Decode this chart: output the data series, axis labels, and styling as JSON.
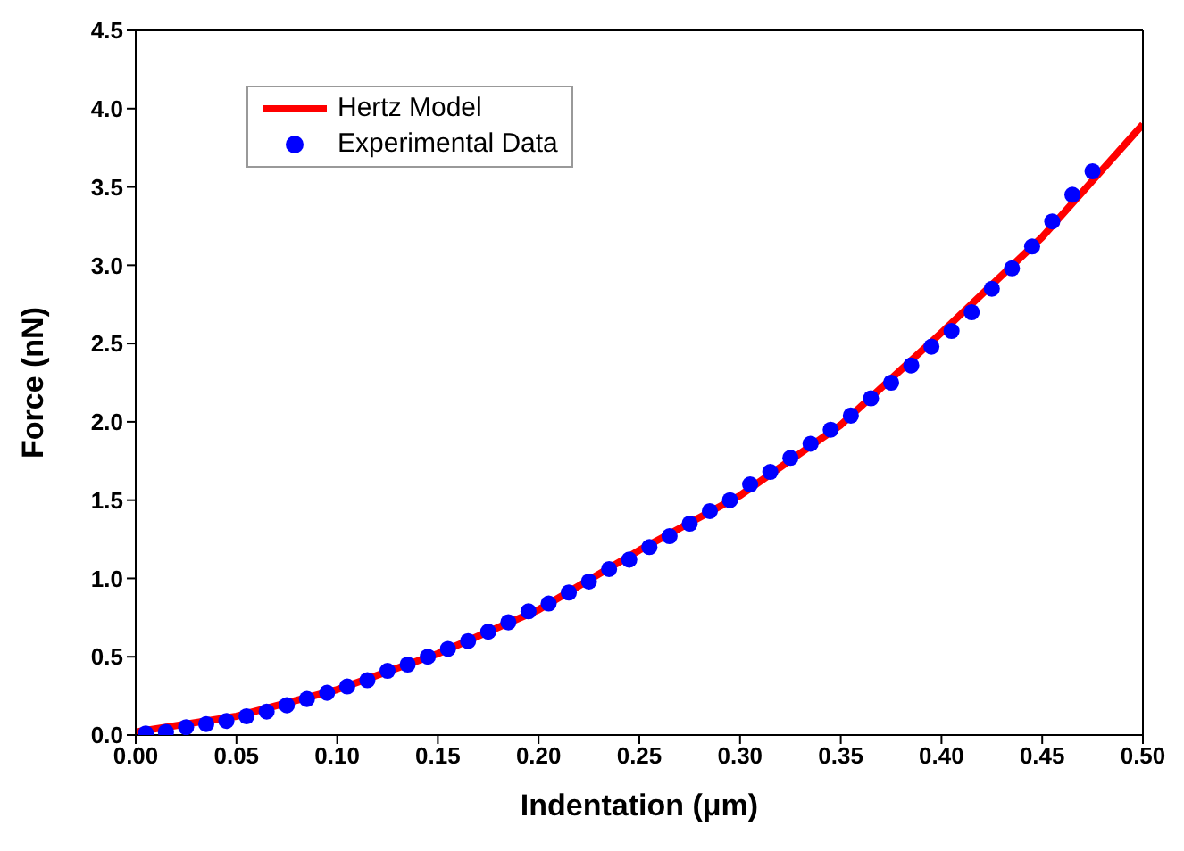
{
  "chart_data": {
    "type": "line",
    "xlabel": "Indentation (μm)",
    "ylabel": "Force (nN)",
    "xlim": [
      0,
      0.5
    ],
    "ylim": [
      0,
      4.5
    ],
    "xticks": [
      {
        "value": 0,
        "label": "0.00"
      },
      {
        "value": 0.05,
        "label": "0.05"
      },
      {
        "value": 0.1,
        "label": "0.10"
      },
      {
        "value": 0.15,
        "label": "0.15"
      },
      {
        "value": 0.2,
        "label": "0.20"
      },
      {
        "value": 0.25,
        "label": "0.25"
      },
      {
        "value": 0.3,
        "label": "0.30"
      },
      {
        "value": 0.35,
        "label": "0.35"
      },
      {
        "value": 0.4,
        "label": "0.40"
      },
      {
        "value": 0.45,
        "label": "0.45"
      },
      {
        "value": 0.5,
        "label": "0.50"
      }
    ],
    "yticks": [
      {
        "value": 0,
        "label": "0.0"
      },
      {
        "value": 0.5,
        "label": "0.5"
      },
      {
        "value": 1,
        "label": "1.0"
      },
      {
        "value": 1.5,
        "label": "1.5"
      },
      {
        "value": 2,
        "label": "2.0"
      },
      {
        "value": 2.5,
        "label": "2.5"
      },
      {
        "value": 3,
        "label": "3.0"
      },
      {
        "value": 3.5,
        "label": "3.5"
      },
      {
        "value": 4,
        "label": "4.0"
      },
      {
        "value": 4.5,
        "label": "4.5"
      }
    ],
    "grid": false,
    "legend": "top left",
    "series": [
      {
        "name": "Hertz Model",
        "color": "#ff0000",
        "line_style": "solid",
        "marker": "none",
        "x": [
          0,
          0.05,
          0.1,
          0.15,
          0.2,
          0.25,
          0.3,
          0.35,
          0.4,
          0.45,
          0.5
        ],
        "values": [
          0.02,
          0.12,
          0.29,
          0.52,
          0.8,
          1.18,
          1.53,
          1.98,
          2.57,
          3.18,
          3.9
        ]
      },
      {
        "name": "Experimental Data",
        "type": "scatter",
        "color": "#0000ff",
        "marker": "circle",
        "x": [
          0.005,
          0.015,
          0.025,
          0.035,
          0.045,
          0.055,
          0.065,
          0.075,
          0.085,
          0.095,
          0.105,
          0.115,
          0.125,
          0.135,
          0.145,
          0.155,
          0.165,
          0.175,
          0.185,
          0.195,
          0.205,
          0.215,
          0.225,
          0.235,
          0.245,
          0.255,
          0.265,
          0.275,
          0.285,
          0.295,
          0.305,
          0.315,
          0.325,
          0.335,
          0.345,
          0.355,
          0.365,
          0.375,
          0.385,
          0.395,
          0.405,
          0.415,
          0.425,
          0.435,
          0.445,
          0.455,
          0.465,
          0.475
        ],
        "values": [
          0.01,
          0.02,
          0.05,
          0.07,
          0.09,
          0.12,
          0.15,
          0.19,
          0.23,
          0.27,
          0.31,
          0.35,
          0.41,
          0.45,
          0.5,
          0.55,
          0.6,
          0.66,
          0.72,
          0.79,
          0.84,
          0.91,
          0.98,
          1.06,
          1.12,
          1.2,
          1.27,
          1.35,
          1.43,
          1.5,
          1.6,
          1.68,
          1.77,
          1.86,
          1.95,
          2.04,
          2.15,
          2.25,
          2.36,
          2.48,
          2.58,
          2.7,
          2.85,
          2.98,
          3.12,
          3.28,
          3.45,
          3.6
        ]
      }
    ]
  }
}
